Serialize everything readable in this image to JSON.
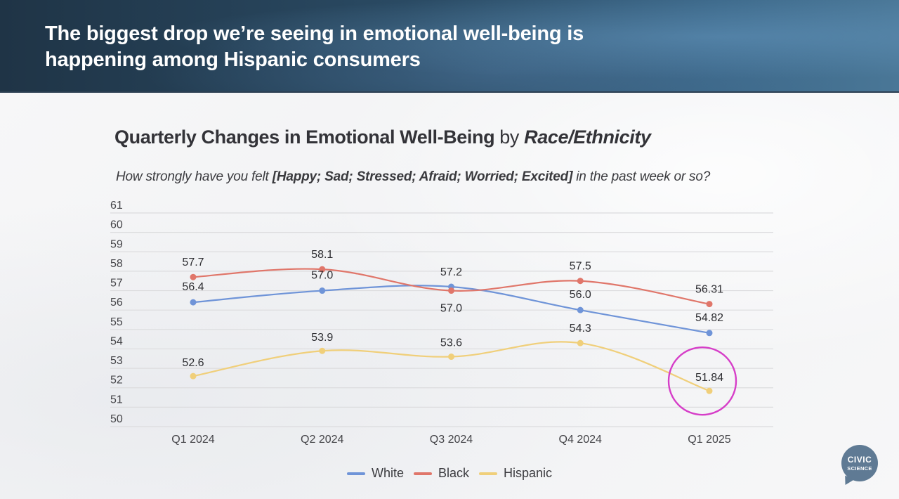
{
  "slide": {
    "headline": "The biggest drop we’re seeing in emotional well-being is happening among Hispanic consumers",
    "logo": {
      "line1": "CIVIC",
      "line2": "SCIENCE",
      "icon": "speech-bubble-logo"
    },
    "highlight": {
      "series": "Hispanic",
      "category": "Q1 2025",
      "shape": "circle",
      "color": "#d63ec8"
    }
  },
  "chart_data": {
    "type": "line",
    "title": "Quarterly Changes in Emotional Well-Being",
    "title_connector": "by",
    "title_emphasis": "Race/Ethnicity",
    "subtitle_prefix": "How strongly have you felt ",
    "subtitle_bold": "[Happy; Sad; Stressed; Afraid; Worried; Excited]",
    "subtitle_suffix": " in the past week or so?",
    "xlabel": "",
    "ylabel": "",
    "categories": [
      "Q1 2024",
      "Q2 2024",
      "Q3 2024",
      "Q4 2024",
      "Q1 2025"
    ],
    "ylim": [
      50,
      61
    ],
    "yticks": [
      "61",
      "60",
      "59",
      "58",
      "57",
      "56",
      "55",
      "54",
      "53",
      "52",
      "51",
      "50"
    ],
    "grid": true,
    "smooth": true,
    "legend_position": "bottom-center",
    "series": [
      {
        "name": "White",
        "color": "#6f94d8",
        "values": [
          56.4,
          57.0,
          57.2,
          56.0,
          54.82
        ],
        "labels": [
          "56.4",
          "57.0",
          "57.2",
          "56.0",
          "54.82"
        ]
      },
      {
        "name": "Black",
        "color": "#e0766a",
        "values": [
          57.7,
          58.1,
          57.0,
          57.5,
          56.31
        ],
        "labels": [
          "57.7",
          "58.1",
          "57.0",
          "57.5",
          "56.31"
        ]
      },
      {
        "name": "Hispanic",
        "color": "#f0cf7a",
        "values": [
          52.6,
          53.9,
          53.6,
          54.3,
          51.84
        ],
        "labels": [
          "52.6",
          "53.9",
          "53.6",
          "54.3",
          "51.84"
        ]
      }
    ]
  }
}
